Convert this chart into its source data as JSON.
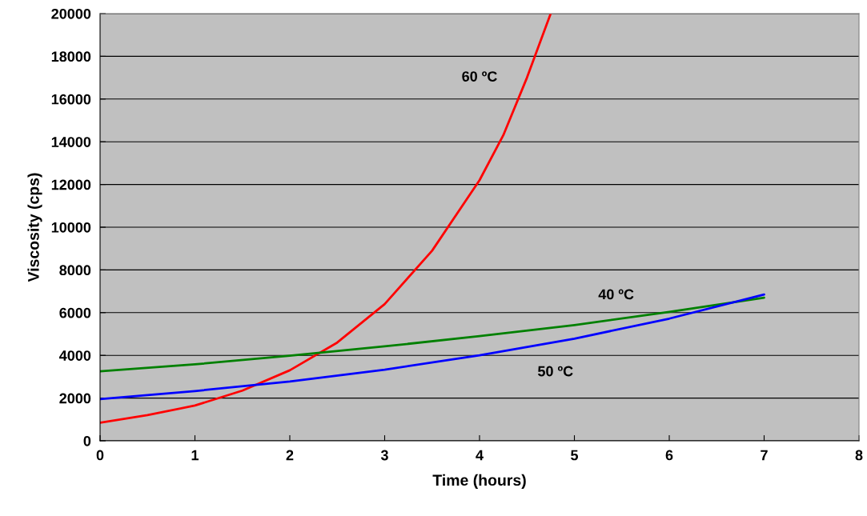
{
  "chart_data": {
    "type": "line",
    "xlabel": "Time (hours)",
    "ylabel": "Viscosity (cps)",
    "xlim": [
      0,
      8
    ],
    "xticks": [
      0,
      1,
      2,
      3,
      4,
      5,
      6,
      7,
      8
    ],
    "ylim": [
      0,
      20000
    ],
    "yticks": [
      0,
      2000,
      4000,
      6000,
      8000,
      10000,
      12000,
      14000,
      16000,
      18000,
      20000
    ],
    "grid": "y",
    "marker": "none",
    "line_style": "solid",
    "series": [
      {
        "name": "60 ºC",
        "color": "#ff0000",
        "x": [
          0,
          0.5,
          1,
          1.5,
          2,
          2.5,
          3,
          3.5,
          4,
          4.25,
          4.5,
          4.75
        ],
        "values": [
          850,
          1200,
          1650,
          2350,
          3300,
          4600,
          6400,
          8900,
          12200,
          14300,
          17000,
          20000
        ]
      },
      {
        "name": "40 ºC",
        "color": "#008000",
        "x": [
          0,
          1,
          2,
          3,
          4,
          5,
          6,
          7
        ],
        "values": [
          3250,
          3580,
          3980,
          4420,
          4900,
          5420,
          6030,
          6700
        ]
      },
      {
        "name": "50 ºC",
        "color": "#0000ff",
        "x": [
          0,
          1,
          2,
          3,
          4,
          5,
          6,
          7
        ],
        "values": [
          1950,
          2330,
          2780,
          3330,
          4000,
          4780,
          5720,
          6850
        ]
      }
    ]
  }
}
